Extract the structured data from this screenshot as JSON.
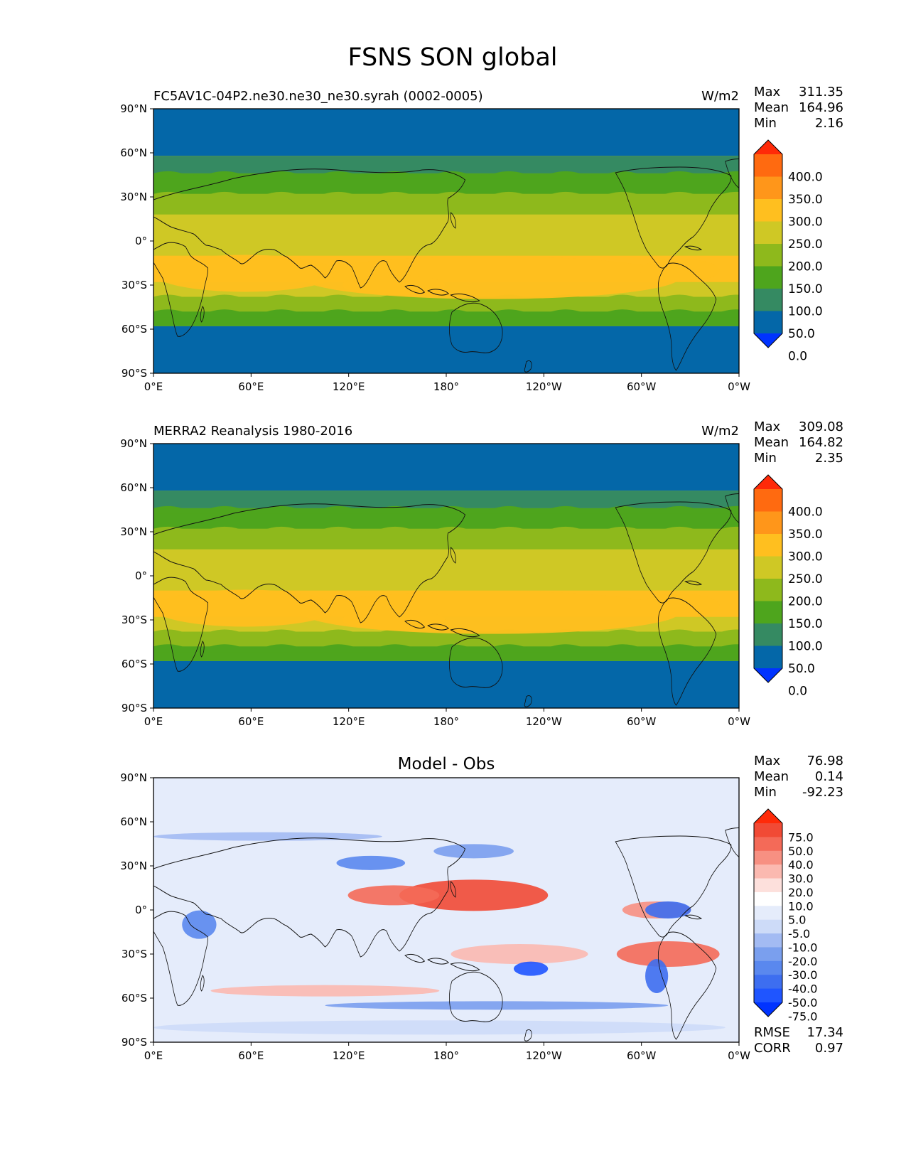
{
  "figure": {
    "title": "FSNS SON global"
  },
  "axes": {
    "x_ticks": [
      "0°E",
      "60°E",
      "120°E",
      "180°",
      "120°W",
      "60°W",
      "0°W"
    ],
    "y_ticks": [
      "90°N",
      "60°N",
      "30°N",
      "0°",
      "30°S",
      "60°S",
      "90°S"
    ]
  },
  "panels": [
    {
      "id": "test",
      "title_left": "FC5AV1C-04P2.ne30.ne30_ne30.syrah (0002-0005)",
      "title_center": "",
      "units": "W/m2",
      "stats": [
        {
          "label": "Max",
          "value": "311.35"
        },
        {
          "label": "Mean",
          "value": "164.96"
        },
        {
          "label": "Min",
          "value": "2.16"
        }
      ],
      "colorbar": {
        "labels": [
          "400.0",
          "350.0",
          "300.0",
          "250.0",
          "200.0",
          "150.0",
          "100.0",
          "50.0",
          "0.0"
        ],
        "colors": [
          "#0033ff",
          "#0467a8",
          "#358a62",
          "#4ea51d",
          "#8eb91c",
          "#cfc825",
          "#ffbf1f",
          "#ff961a",
          "#ff6a10",
          "#ff2a08"
        ]
      }
    },
    {
      "id": "reference",
      "title_left": "MERRA2 Reanalysis 1980-2016",
      "title_center": "",
      "units": "W/m2",
      "stats": [
        {
          "label": "Max",
          "value": "309.08"
        },
        {
          "label": "Mean",
          "value": "164.82"
        },
        {
          "label": "Min",
          "value": "2.35"
        }
      ],
      "colorbar": {
        "labels": [
          "400.0",
          "350.0",
          "300.0",
          "250.0",
          "200.0",
          "150.0",
          "100.0",
          "50.0",
          "0.0"
        ],
        "colors": [
          "#0033ff",
          "#0467a8",
          "#358a62",
          "#4ea51d",
          "#8eb91c",
          "#cfc825",
          "#ffbf1f",
          "#ff961a",
          "#ff6a10",
          "#ff2a08"
        ]
      }
    },
    {
      "id": "difference",
      "title_left": "",
      "title_center": "Model - Obs",
      "units": "",
      "stats": [
        {
          "label": "Max",
          "value": "76.98"
        },
        {
          "label": "Mean",
          "value": "0.14"
        },
        {
          "label": "Min",
          "value": "-92.23"
        }
      ],
      "extra_stats": [
        {
          "label": "RMSE",
          "value": "17.34"
        },
        {
          "label": "CORR",
          "value": "0.97"
        }
      ],
      "colorbar": {
        "labels": [
          "75.0",
          "50.0",
          "40.0",
          "30.0",
          "20.0",
          "10.0",
          "5.0",
          "-5.0",
          "-10.0",
          "-20.0",
          "-30.0",
          "-40.0",
          "-50.0",
          "-75.0"
        ],
        "colors": [
          "#0033ff",
          "#1f55ff",
          "#3d6ef0",
          "#5a88ee",
          "#7a9fee",
          "#a3bbf3",
          "#cddbf8",
          "#e5ecfb",
          "#ffffff",
          "#fde0dc",
          "#fbb9b0",
          "#f79082",
          "#f46a58",
          "#f14a35",
          "#ff2a08"
        ]
      }
    }
  ]
}
